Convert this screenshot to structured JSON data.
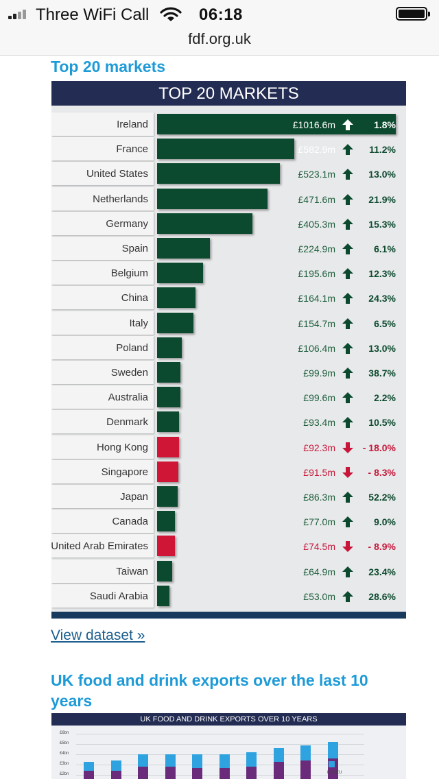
{
  "status_bar": {
    "carrier": "Three WiFi Call",
    "time": "06:18"
  },
  "browser": {
    "url": "fdf.org.uk"
  },
  "section1": {
    "title": "Top 20 markets",
    "chart_header": "TOP 20 MARKETS",
    "view_link": "View dataset »"
  },
  "chart_data": [
    {
      "type": "bar",
      "title": "TOP 20 MARKETS",
      "orientation": "horizontal",
      "categories": [
        "Ireland",
        "France",
        "United States",
        "Netherlands",
        "Germany",
        "Spain",
        "Belgium",
        "China",
        "Italy",
        "Poland",
        "Sweden",
        "Australia",
        "Denmark",
        "Hong Kong",
        "Singapore",
        "Japan",
        "Canada",
        "United Arab Emirates",
        "Taiwan",
        "Saudi Arabia"
      ],
      "values": [
        1016.6,
        582.9,
        523.1,
        471.6,
        405.3,
        224.9,
        195.6,
        164.1,
        154.7,
        106.4,
        99.9,
        99.6,
        93.4,
        92.3,
        91.5,
        86.3,
        77.0,
        74.5,
        64.9,
        53.0
      ],
      "value_labels": [
        "£1016.6m",
        "£582.9m",
        "£523.1m",
        "£471.6m",
        "£405.3m",
        "£224.9m",
        "£195.6m",
        "£164.1m",
        "£154.7m",
        "£106.4m",
        "£99.9m",
        "£99.6m",
        "£93.4m",
        "£92.3m",
        "£91.5m",
        "£86.3m",
        "£77.0m",
        "£74.5m",
        "£64.9m",
        "£53.0m"
      ],
      "change_labels": [
        "1.8%",
        "11.2%",
        "13.0%",
        "21.9%",
        "15.3%",
        "6.1%",
        "12.3%",
        "24.3%",
        "6.5%",
        "13.0%",
        "38.7%",
        "2.2%",
        "10.5%",
        "- 18.0%",
        "- 8.3%",
        "52.2%",
        "9.0%",
        "- 8.9%",
        "23.4%",
        "28.6%"
      ],
      "direction": [
        "up",
        "up",
        "up",
        "up",
        "up",
        "up",
        "up",
        "up",
        "up",
        "up",
        "up",
        "up",
        "up",
        "down",
        "down",
        "up",
        "up",
        "down",
        "up",
        "up"
      ],
      "colors": {
        "up": "#0c4a2f",
        "down": "#cf1637"
      }
    },
    {
      "type": "bar",
      "title": "UK FOOD AND DRINK EXPORTS OVER 10 YEARS",
      "y_tick_labels": [
        "£6bn",
        "£5bn",
        "£4bn",
        "£3bn",
        "£2bn"
      ],
      "ylim": [
        2,
        6
      ],
      "series": [
        {
          "name": "Non-EU",
          "values": [
            3.3,
            3.4,
            4.0,
            4.0,
            4.0,
            4.0,
            4.2,
            4.6,
            4.9,
            5.2
          ]
        },
        {
          "values": [
            2.4,
            2.4,
            2.8,
            2.8,
            2.7,
            2.7,
            2.8,
            3.3,
            3.4,
            3.6
          ]
        }
      ],
      "colors": [
        "#2fa3df",
        "#6a2c7a"
      ]
    }
  ],
  "section2": {
    "title_line1": "UK food and drink exports over the last 10",
    "title_line2": "years",
    "chart_header": "UK FOOD AND DRINK EXPORTS OVER 10 YEARS",
    "legend_label": "Non-EU"
  }
}
